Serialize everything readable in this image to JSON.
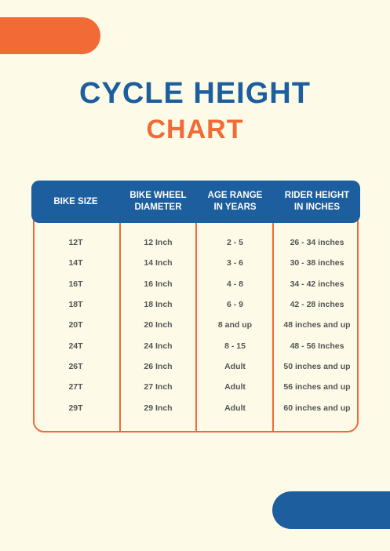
{
  "title": {
    "line1": "CYCLE HEIGHT",
    "line2": "CHART"
  },
  "colors": {
    "background": "#fdfbe8",
    "primary_blue": "#1c5e9e",
    "accent_orange": "#f26a35",
    "cell_text": "#555555"
  },
  "table": {
    "headers": [
      "BIKE SIZE",
      "BIKE WHEEL\nDIAMETER",
      "AGE RANGE\nIN YEARS",
      "RIDER HEIGHT\nIN INCHES"
    ],
    "rows": [
      [
        "12T",
        "12 Inch",
        "2 - 5",
        "26 - 34 inches"
      ],
      [
        "14T",
        "14 Inch",
        "3 - 6",
        "30 - 38 inches"
      ],
      [
        "16T",
        "16 Inch",
        "4 - 8",
        "34 - 42 inches"
      ],
      [
        "18T",
        "18 Inch",
        "6 - 9",
        "42 - 28 inches"
      ],
      [
        "20T",
        "20 Inch",
        "8 and up",
        "48 inches and up"
      ],
      [
        "24T",
        "24 Inch",
        "8 - 15",
        "48 - 56 Inches"
      ],
      [
        "26T",
        "26 Inch",
        "Adult",
        "50 inches and up"
      ],
      [
        "27T",
        "27 Inch",
        "Adult",
        "56 inches and up"
      ],
      [
        "29T",
        "29 Inch",
        "Adult",
        "60 inches and up"
      ]
    ]
  }
}
